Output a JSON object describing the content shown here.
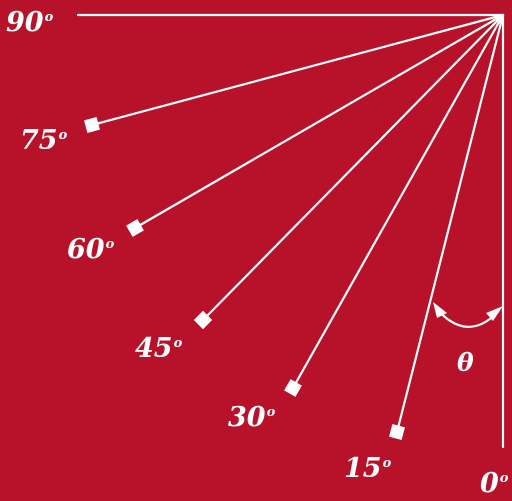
{
  "colors": {
    "background": "#b8112a",
    "lines": "#ffffff"
  },
  "angle_symbol": "θ",
  "angles": [
    {
      "value": "90",
      "unit": "o"
    },
    {
      "value": "75",
      "unit": "o"
    },
    {
      "value": "60",
      "unit": "o"
    },
    {
      "value": "45",
      "unit": "o"
    },
    {
      "value": "30",
      "unit": "o"
    },
    {
      "value": "15",
      "unit": "o"
    },
    {
      "value": "0",
      "unit": "o"
    }
  ]
}
